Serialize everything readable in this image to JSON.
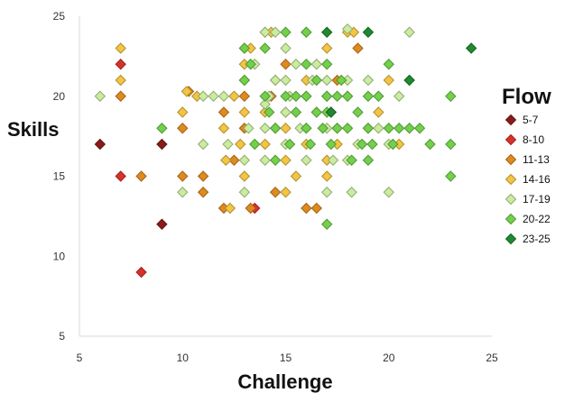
{
  "chart_data": {
    "type": "scatter",
    "title": "",
    "xlabel": "Challenge",
    "ylabel": "Skills",
    "xlim": [
      5,
      25
    ],
    "ylim": [
      5,
      25
    ],
    "xticks": [
      "5",
      "10",
      "15",
      "20",
      "25"
    ],
    "yticks": [
      "5",
      "10",
      "15",
      "20",
      "25"
    ],
    "grid": false,
    "legend_title": "Flow",
    "legend_position": "right",
    "marker": "diamond",
    "series": [
      {
        "name": "5-7",
        "color": "#8B1A1A",
        "points": [
          [
            6,
            17
          ],
          [
            9,
            17
          ],
          [
            9,
            12
          ],
          [
            17.2,
            19
          ]
        ]
      },
      {
        "name": "8-10",
        "color": "#D9312B",
        "points": [
          [
            7,
            22
          ],
          [
            7,
            15
          ],
          [
            8,
            9
          ],
          [
            13.5,
            13
          ]
        ]
      },
      {
        "name": "11-13",
        "color": "#E08A1E",
        "points": [
          [
            7,
            20
          ],
          [
            8,
            15
          ],
          [
            10,
            18
          ],
          [
            10,
            15
          ],
          [
            10.3,
            20.3
          ],
          [
            11,
            15
          ],
          [
            11,
            14
          ],
          [
            12,
            19
          ],
          [
            12,
            13
          ],
          [
            12.5,
            16
          ],
          [
            13,
            18
          ],
          [
            13,
            20
          ],
          [
            13.3,
            13
          ],
          [
            14,
            24
          ],
          [
            14.3,
            20
          ],
          [
            14.5,
            14
          ],
          [
            15,
            22
          ],
          [
            15,
            19
          ],
          [
            16,
            13
          ],
          [
            16.5,
            13
          ],
          [
            17.5,
            21
          ],
          [
            18.5,
            23
          ]
        ]
      },
      {
        "name": "14-16",
        "color": "#F4C542",
        "points": [
          [
            7,
            23
          ],
          [
            7,
            21
          ],
          [
            10,
            19
          ],
          [
            10.2,
            20.3
          ],
          [
            10.7,
            20
          ],
          [
            12,
            18
          ],
          [
            12.1,
            16
          ],
          [
            12.3,
            13
          ],
          [
            12.5,
            20
          ],
          [
            12.8,
            17
          ],
          [
            13,
            23
          ],
          [
            13,
            22
          ],
          [
            13,
            21
          ],
          [
            13,
            19
          ],
          [
            13,
            15
          ],
          [
            13.3,
            23
          ],
          [
            14,
            19
          ],
          [
            14,
            17
          ],
          [
            14.3,
            24
          ],
          [
            14.5,
            21
          ],
          [
            14.5,
            18
          ],
          [
            15,
            18
          ],
          [
            15,
            16
          ],
          [
            15,
            14
          ],
          [
            15.5,
            15
          ],
          [
            16,
            21
          ],
          [
            16,
            17
          ],
          [
            16.5,
            19
          ],
          [
            17,
            23
          ],
          [
            17,
            16
          ],
          [
            17,
            15
          ],
          [
            17.5,
            17
          ],
          [
            18,
            24
          ],
          [
            18.3,
            24
          ],
          [
            19,
            18
          ],
          [
            19.5,
            19
          ],
          [
            20,
            21
          ],
          [
            20.5,
            17
          ]
        ]
      },
      {
        "name": "17-19",
        "color": "#C9EC9E",
        "points": [
          [
            6,
            20
          ],
          [
            10,
            14
          ],
          [
            11,
            20
          ],
          [
            11,
            17
          ],
          [
            11.5,
            20
          ],
          [
            12,
            20
          ],
          [
            12.2,
            17
          ],
          [
            13,
            16
          ],
          [
            13,
            14
          ],
          [
            13.2,
            18
          ],
          [
            13.5,
            22
          ],
          [
            14,
            24
          ],
          [
            14,
            18
          ],
          [
            14,
            16
          ],
          [
            14,
            19.5
          ],
          [
            14.2,
            20
          ],
          [
            14.5,
            21
          ],
          [
            14.5,
            24
          ],
          [
            15,
            23
          ],
          [
            15,
            21
          ],
          [
            15,
            19
          ],
          [
            15,
            17
          ],
          [
            15.2,
            20
          ],
          [
            15.5,
            22
          ],
          [
            15.7,
            18
          ],
          [
            16,
            24
          ],
          [
            16,
            20
          ],
          [
            16,
            18
          ],
          [
            16,
            16
          ],
          [
            16.3,
            21
          ],
          [
            16.5,
            22
          ],
          [
            17,
            20
          ],
          [
            17,
            21
          ],
          [
            17,
            18
          ],
          [
            17,
            14
          ],
          [
            17.3,
            16
          ],
          [
            17.5,
            18
          ],
          [
            18,
            24.2
          ],
          [
            18,
            21
          ],
          [
            18,
            20
          ],
          [
            18,
            16
          ],
          [
            18.2,
            14
          ],
          [
            18.5,
            17
          ],
          [
            19,
            21
          ],
          [
            19.5,
            18
          ],
          [
            20,
            17
          ],
          [
            20,
            14
          ],
          [
            20.5,
            20
          ],
          [
            21,
            24
          ]
        ]
      },
      {
        "name": "20-22",
        "color": "#72D14A",
        "points": [
          [
            9,
            18
          ],
          [
            13,
            23
          ],
          [
            13,
            21
          ],
          [
            13.3,
            22
          ],
          [
            13.5,
            17
          ],
          [
            14,
            23
          ],
          [
            14,
            20
          ],
          [
            14.2,
            19
          ],
          [
            14.5,
            18
          ],
          [
            14.5,
            16
          ],
          [
            15,
            24
          ],
          [
            15,
            20
          ],
          [
            15.2,
            17
          ],
          [
            15.5,
            19
          ],
          [
            15.5,
            20
          ],
          [
            16,
            24
          ],
          [
            16,
            22
          ],
          [
            16,
            20
          ],
          [
            16,
            18
          ],
          [
            16.2,
            17
          ],
          [
            16.5,
            21
          ],
          [
            16.5,
            19
          ],
          [
            16.8,
            18
          ],
          [
            17,
            22
          ],
          [
            17,
            20
          ],
          [
            17,
            19
          ],
          [
            17,
            12
          ],
          [
            17.2,
            17
          ],
          [
            17.5,
            20
          ],
          [
            17.5,
            18
          ],
          [
            17.7,
            21
          ],
          [
            18,
            20
          ],
          [
            18,
            18
          ],
          [
            18.2,
            16
          ],
          [
            18.5,
            19
          ],
          [
            18.7,
            17
          ],
          [
            19,
            20
          ],
          [
            19,
            18
          ],
          [
            19,
            16
          ],
          [
            19.2,
            17
          ],
          [
            19.5,
            20
          ],
          [
            20,
            22
          ],
          [
            20,
            18
          ],
          [
            20.2,
            17
          ],
          [
            20.5,
            18
          ],
          [
            21,
            21
          ],
          [
            21,
            18
          ],
          [
            21.5,
            18
          ],
          [
            22,
            17
          ],
          [
            23,
            20
          ],
          [
            23,
            17
          ],
          [
            23,
            15
          ]
        ]
      },
      {
        "name": "23-25",
        "color": "#1F8A2E",
        "points": [
          [
            17,
            24
          ],
          [
            17.2,
            19
          ],
          [
            19,
            24
          ],
          [
            21,
            21
          ],
          [
            24,
            23
          ]
        ]
      }
    ]
  }
}
